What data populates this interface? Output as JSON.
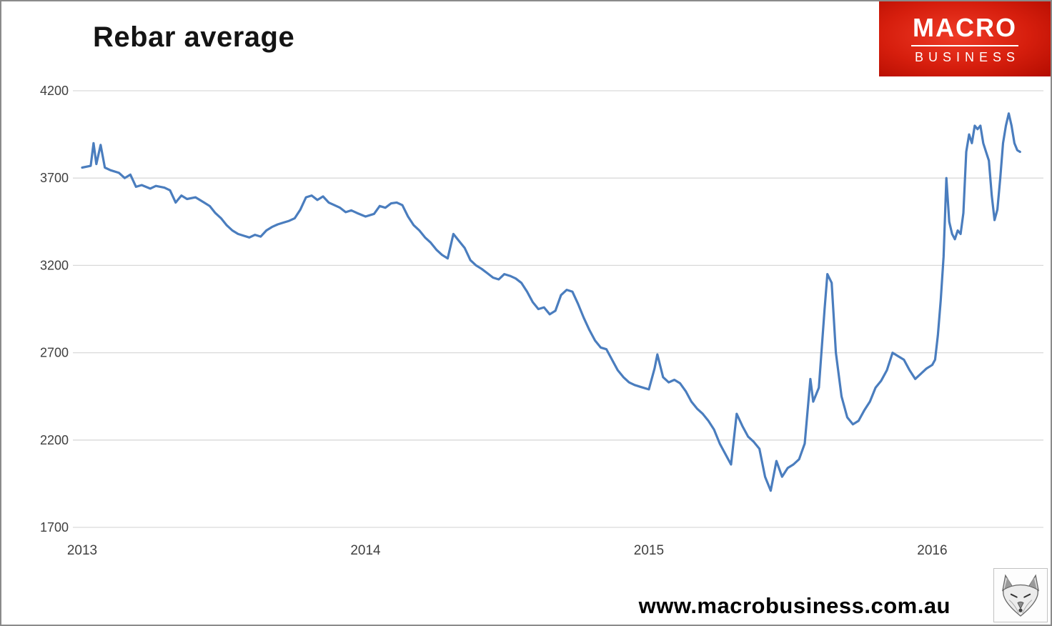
{
  "page": {
    "footer_url": "www.macrobusiness.com.au"
  },
  "logo": {
    "line1": "MACRO",
    "line2": "BUSINESS"
  },
  "chart_data": {
    "type": "line",
    "title": "Rebar average",
    "xlabel": "",
    "ylabel": "",
    "legend": "none",
    "grid": "horizontal",
    "line_color": "#4a7dbe",
    "grid_color": "#d9d9d9",
    "tick_color": "#404040",
    "ylim": [
      1700,
      4200
    ],
    "xlim": [
      2013.0,
      2016.4
    ],
    "y_ticks": [
      4200,
      3700,
      3200,
      2700,
      2200,
      1700
    ],
    "x_ticks": [
      2013,
      2014,
      2015,
      2016
    ],
    "series": [
      {
        "name": "Rebar average",
        "points": [
          [
            2013.0,
            3760
          ],
          [
            2013.03,
            3770
          ],
          [
            2013.04,
            3900
          ],
          [
            2013.05,
            3780
          ],
          [
            2013.065,
            3890
          ],
          [
            2013.08,
            3760
          ],
          [
            2013.1,
            3745
          ],
          [
            2013.13,
            3730
          ],
          [
            2013.15,
            3700
          ],
          [
            2013.17,
            3720
          ],
          [
            2013.19,
            3650
          ],
          [
            2013.21,
            3660
          ],
          [
            2013.24,
            3640
          ],
          [
            2013.26,
            3655
          ],
          [
            2013.29,
            3645
          ],
          [
            2013.31,
            3630
          ],
          [
            2013.33,
            3560
          ],
          [
            2013.35,
            3600
          ],
          [
            2013.37,
            3580
          ],
          [
            2013.4,
            3590
          ],
          [
            2013.43,
            3560
          ],
          [
            2013.45,
            3540
          ],
          [
            2013.47,
            3500
          ],
          [
            2013.49,
            3470
          ],
          [
            2013.51,
            3430
          ],
          [
            2013.53,
            3400
          ],
          [
            2013.55,
            3380
          ],
          [
            2013.57,
            3370
          ],
          [
            2013.59,
            3360
          ],
          [
            2013.61,
            3375
          ],
          [
            2013.63,
            3365
          ],
          [
            2013.65,
            3400
          ],
          [
            2013.67,
            3420
          ],
          [
            2013.69,
            3435
          ],
          [
            2013.71,
            3445
          ],
          [
            2013.73,
            3455
          ],
          [
            2013.75,
            3470
          ],
          [
            2013.77,
            3520
          ],
          [
            2013.79,
            3590
          ],
          [
            2013.81,
            3600
          ],
          [
            2013.83,
            3575
          ],
          [
            2013.85,
            3595
          ],
          [
            2013.87,
            3560
          ],
          [
            2013.89,
            3545
          ],
          [
            2013.91,
            3530
          ],
          [
            2013.93,
            3505
          ],
          [
            2013.95,
            3515
          ],
          [
            2013.97,
            3500
          ],
          [
            2014.0,
            3480
          ],
          [
            2014.03,
            3495
          ],
          [
            2014.05,
            3540
          ],
          [
            2014.07,
            3530
          ],
          [
            2014.09,
            3555
          ],
          [
            2014.11,
            3560
          ],
          [
            2014.13,
            3545
          ],
          [
            2014.15,
            3480
          ],
          [
            2014.17,
            3430
          ],
          [
            2014.19,
            3400
          ],
          [
            2014.21,
            3360
          ],
          [
            2014.23,
            3330
          ],
          [
            2014.25,
            3290
          ],
          [
            2014.27,
            3260
          ],
          [
            2014.29,
            3240
          ],
          [
            2014.31,
            3380
          ],
          [
            2014.33,
            3340
          ],
          [
            2014.35,
            3300
          ],
          [
            2014.37,
            3230
          ],
          [
            2014.39,
            3200
          ],
          [
            2014.41,
            3180
          ],
          [
            2014.43,
            3155
          ],
          [
            2014.45,
            3130
          ],
          [
            2014.47,
            3120
          ],
          [
            2014.49,
            3150
          ],
          [
            2014.51,
            3140
          ],
          [
            2014.53,
            3125
          ],
          [
            2014.55,
            3100
          ],
          [
            2014.57,
            3050
          ],
          [
            2014.59,
            2990
          ],
          [
            2014.61,
            2950
          ],
          [
            2014.63,
            2960
          ],
          [
            2014.65,
            2920
          ],
          [
            2014.67,
            2940
          ],
          [
            2014.69,
            3030
          ],
          [
            2014.71,
            3060
          ],
          [
            2014.73,
            3050
          ],
          [
            2014.75,
            2980
          ],
          [
            2014.77,
            2900
          ],
          [
            2014.79,
            2830
          ],
          [
            2014.81,
            2770
          ],
          [
            2014.83,
            2730
          ],
          [
            2014.85,
            2720
          ],
          [
            2014.87,
            2660
          ],
          [
            2014.89,
            2600
          ],
          [
            2014.91,
            2560
          ],
          [
            2014.93,
            2530
          ],
          [
            2014.95,
            2515
          ],
          [
            2014.97,
            2505
          ],
          [
            2015.0,
            2490
          ],
          [
            2015.02,
            2610
          ],
          [
            2015.03,
            2690
          ],
          [
            2015.05,
            2560
          ],
          [
            2015.07,
            2530
          ],
          [
            2015.09,
            2545
          ],
          [
            2015.11,
            2525
          ],
          [
            2015.13,
            2480
          ],
          [
            2015.15,
            2420
          ],
          [
            2015.17,
            2380
          ],
          [
            2015.19,
            2350
          ],
          [
            2015.21,
            2310
          ],
          [
            2015.23,
            2260
          ],
          [
            2015.25,
            2180
          ],
          [
            2015.27,
            2120
          ],
          [
            2015.29,
            2060
          ],
          [
            2015.31,
            2350
          ],
          [
            2015.33,
            2280
          ],
          [
            2015.35,
            2220
          ],
          [
            2015.37,
            2190
          ],
          [
            2015.39,
            2150
          ],
          [
            2015.41,
            1990
          ],
          [
            2015.43,
            1910
          ],
          [
            2015.45,
            2080
          ],
          [
            2015.47,
            1990
          ],
          [
            2015.49,
            2040
          ],
          [
            2015.51,
            2060
          ],
          [
            2015.53,
            2090
          ],
          [
            2015.55,
            2180
          ],
          [
            2015.57,
            2550
          ],
          [
            2015.58,
            2420
          ],
          [
            2015.6,
            2500
          ],
          [
            2015.62,
            2950
          ],
          [
            2015.63,
            3150
          ],
          [
            2015.645,
            3100
          ],
          [
            2015.66,
            2700
          ],
          [
            2015.68,
            2450
          ],
          [
            2015.7,
            2330
          ],
          [
            2015.72,
            2290
          ],
          [
            2015.74,
            2310
          ],
          [
            2015.76,
            2370
          ],
          [
            2015.78,
            2420
          ],
          [
            2015.8,
            2500
          ],
          [
            2015.82,
            2540
          ],
          [
            2015.84,
            2600
          ],
          [
            2015.86,
            2700
          ],
          [
            2015.88,
            2680
          ],
          [
            2015.9,
            2660
          ],
          [
            2015.92,
            2600
          ],
          [
            2015.94,
            2550
          ],
          [
            2015.96,
            2580
          ],
          [
            2015.98,
            2610
          ],
          [
            2016.0,
            2630
          ],
          [
            2016.01,
            2660
          ],
          [
            2016.02,
            2800
          ],
          [
            2016.03,
            3000
          ],
          [
            2016.04,
            3250
          ],
          [
            2016.05,
            3700
          ],
          [
            2016.06,
            3450
          ],
          [
            2016.07,
            3380
          ],
          [
            2016.08,
            3350
          ],
          [
            2016.09,
            3400
          ],
          [
            2016.1,
            3380
          ],
          [
            2016.11,
            3500
          ],
          [
            2016.12,
            3850
          ],
          [
            2016.13,
            3950
          ],
          [
            2016.14,
            3900
          ],
          [
            2016.15,
            4000
          ],
          [
            2016.16,
            3980
          ],
          [
            2016.17,
            4000
          ],
          [
            2016.18,
            3900
          ],
          [
            2016.19,
            3850
          ],
          [
            2016.2,
            3800
          ],
          [
            2016.21,
            3600
          ],
          [
            2016.22,
            3460
          ],
          [
            2016.23,
            3520
          ],
          [
            2016.24,
            3700
          ],
          [
            2016.25,
            3900
          ],
          [
            2016.26,
            4000
          ],
          [
            2016.27,
            4070
          ],
          [
            2016.28,
            4000
          ],
          [
            2016.29,
            3900
          ],
          [
            2016.3,
            3860
          ],
          [
            2016.31,
            3850
          ]
        ]
      }
    ]
  }
}
